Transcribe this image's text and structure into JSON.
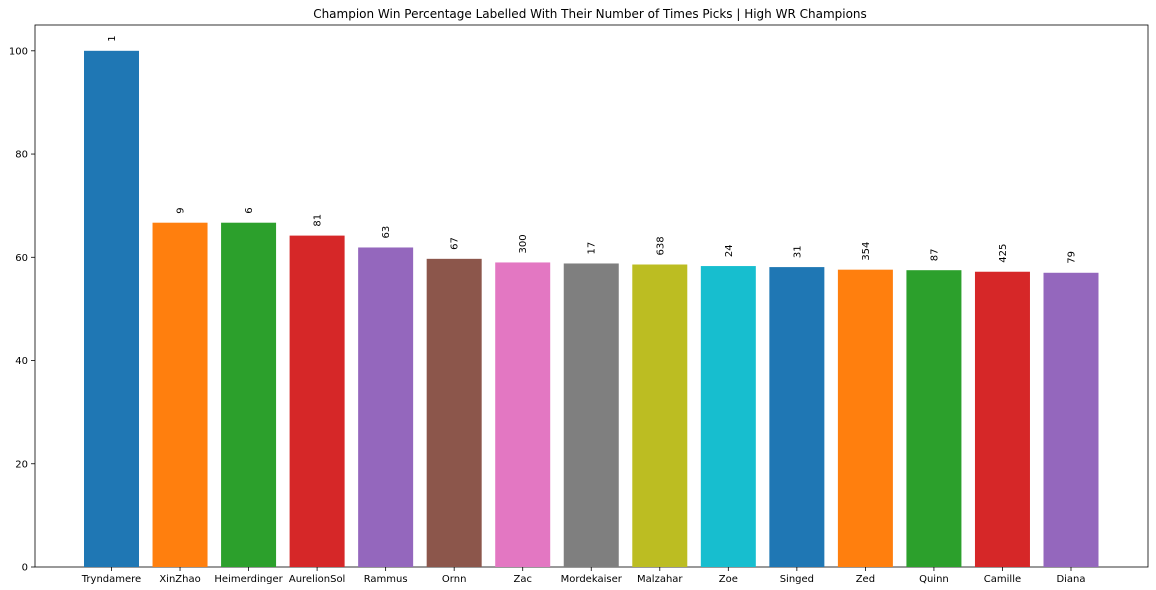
{
  "chart_data": {
    "type": "bar",
    "title": "Champion Win Percentage Labelled With Their Number of Times Picks | High WR Champions",
    "xlabel": "",
    "ylabel": "",
    "categories": [
      "Tryndamere",
      "XinZhao",
      "Heimerdinger",
      "AurelionSol",
      "Rammus",
      "Ornn",
      "Zac",
      "Mordekaiser",
      "Malzahar",
      "Zoe",
      "Singed",
      "Zed",
      "Quinn",
      "Camille",
      "Diana"
    ],
    "values": [
      100,
      66.7,
      66.7,
      64.2,
      61.9,
      59.7,
      59.0,
      58.8,
      58.6,
      58.3,
      58.1,
      57.6,
      57.5,
      57.2,
      57.0
    ],
    "labels": [
      "1",
      "9",
      "6",
      "81",
      "63",
      "67",
      "300",
      "17",
      "638",
      "24",
      "31",
      "354",
      "87",
      "425",
      "79"
    ],
    "colors": [
      "#1f77b4",
      "#ff7f0e",
      "#2ca02c",
      "#d62728",
      "#9467bd",
      "#8c564b",
      "#e377c2",
      "#7f7f7f",
      "#bcbd22",
      "#17becf",
      "#1f77b4",
      "#ff7f0e",
      "#2ca02c",
      "#d62728",
      "#9467bd"
    ],
    "ylim": [
      0,
      105
    ],
    "yticks": [
      0,
      20,
      40,
      60,
      80,
      100
    ],
    "grid": false,
    "legend": "none"
  }
}
